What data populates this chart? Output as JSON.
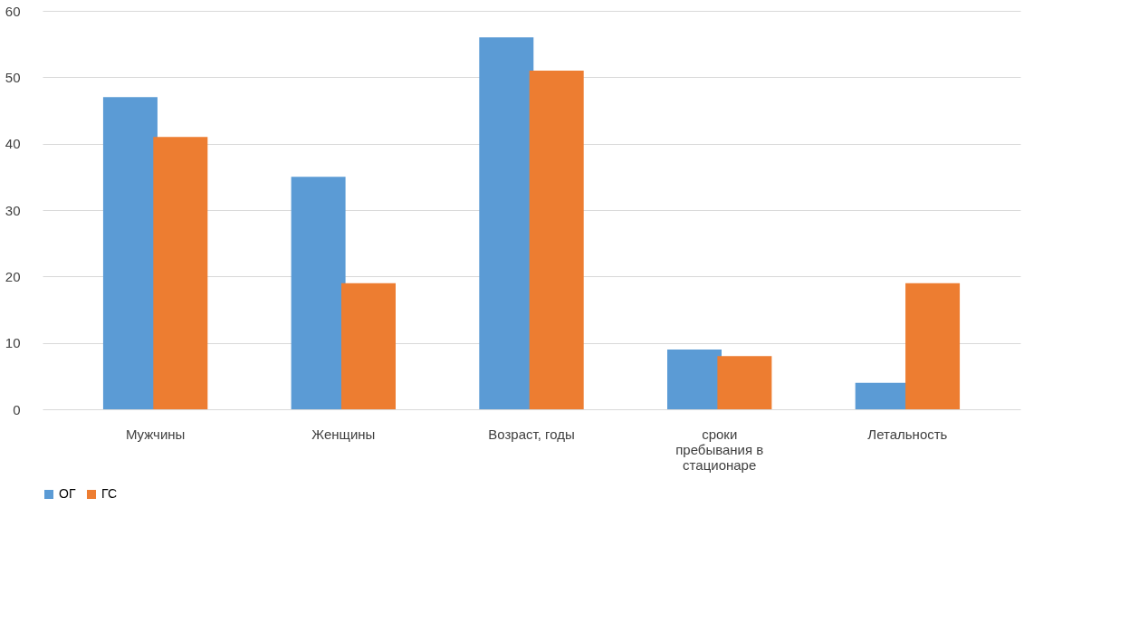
{
  "chart_data": {
    "type": "bar",
    "categories": [
      "Мужчины",
      "Женщины",
      "Возраст, годы",
      "сроки пребывания в стационаре",
      "Летальность"
    ],
    "series": [
      {
        "name": "ОГ",
        "color": "#5b9bd5",
        "values": [
          47,
          35,
          56,
          9,
          4
        ]
      },
      {
        "name": "ГС",
        "color": "#ed7d31",
        "values": [
          41,
          19,
          51,
          8,
          19
        ]
      }
    ],
    "ylim": [
      0,
      60
    ],
    "yticks": [
      0,
      10,
      20,
      30,
      40,
      50,
      60
    ],
    "grid": "y",
    "legend": "bottom"
  }
}
